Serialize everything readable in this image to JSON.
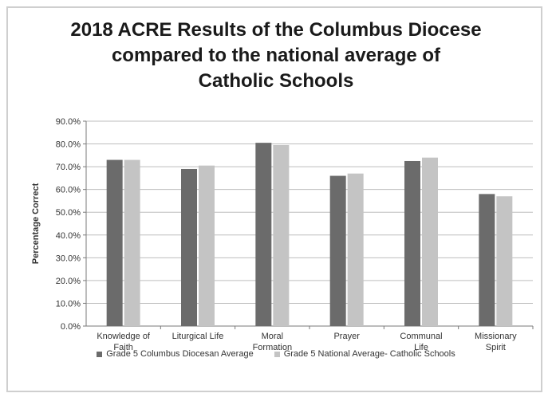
{
  "chart_data": {
    "type": "bar",
    "title": [
      "2018 ACRE Results of the Columbus Diocese",
      "compared to the national average of",
      "Catholic Schools"
    ],
    "ylabel": "Percentage Correct",
    "xlabel": "",
    "ylim": [
      0,
      90
    ],
    "yticks": [
      "0.0%",
      "10.0%",
      "20.0%",
      "30.0%",
      "40.0%",
      "50.0%",
      "60.0%",
      "70.0%",
      "80.0%",
      "90.0%"
    ],
    "categories": [
      [
        "Knowledge of",
        "Faith"
      ],
      [
        "Liturgical Life"
      ],
      [
        "Moral",
        "Formation"
      ],
      [
        "Prayer"
      ],
      [
        "Communal",
        "Life"
      ],
      [
        "Missionary",
        "Spirit"
      ]
    ],
    "series": [
      {
        "name": "Grade 5 Columbus Diocesan Average",
        "color": "#6b6b6b",
        "values": [
          73.0,
          69.0,
          80.5,
          66.0,
          72.5,
          58.0
        ]
      },
      {
        "name": "Grade 5 National Average- Catholic Schools",
        "color": "#c4c4c4",
        "values": [
          73.0,
          70.5,
          79.5,
          67.0,
          74.0,
          57.0
        ]
      }
    ],
    "grid": true,
    "legend": "bottom"
  }
}
